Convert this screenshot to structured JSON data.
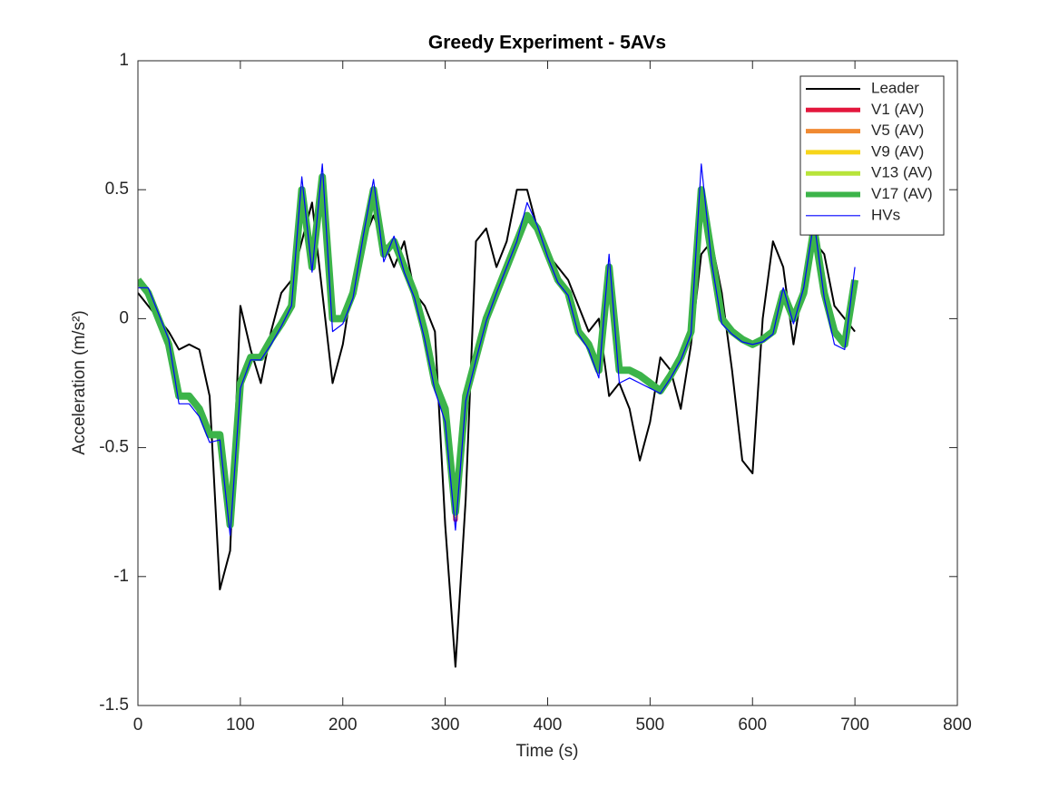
{
  "chart_data": {
    "type": "line",
    "title": "Greedy Experiment - 5AVs",
    "xlabel": "Time (s)",
    "ylabel": "Acceleration (m/s²)",
    "xlim": [
      0,
      800
    ],
    "xticks": [
      0,
      100,
      200,
      300,
      400,
      500,
      600,
      700,
      800
    ],
    "ylim": [
      -1.5,
      1
    ],
    "yticks": [
      -1.5,
      -1,
      -0.5,
      0,
      0.5,
      1
    ],
    "legend": "northeast",
    "x": [
      0,
      10,
      20,
      30,
      40,
      50,
      60,
      70,
      80,
      90,
      100,
      110,
      120,
      130,
      140,
      150,
      160,
      170,
      180,
      190,
      200,
      210,
      220,
      230,
      240,
      250,
      260,
      270,
      280,
      290,
      300,
      310,
      320,
      330,
      340,
      350,
      360,
      370,
      380,
      390,
      400,
      410,
      420,
      430,
      440,
      450,
      460,
      470,
      480,
      490,
      500,
      510,
      520,
      530,
      540,
      550,
      560,
      570,
      580,
      590,
      600,
      610,
      620,
      630,
      640,
      650,
      660,
      670,
      680,
      690,
      700
    ],
    "series": [
      {
        "name": "Leader",
        "color": "#000000",
        "width": 2,
        "values": [
          0.1,
          0.05,
          0.0,
          -0.05,
          -0.12,
          -0.1,
          -0.12,
          -0.3,
          -1.05,
          -0.9,
          0.05,
          -0.12,
          -0.25,
          -0.05,
          0.1,
          0.15,
          0.3,
          0.45,
          0.1,
          -0.25,
          -0.1,
          0.15,
          0.3,
          0.4,
          0.3,
          0.2,
          0.3,
          0.1,
          0.05,
          -0.05,
          -0.8,
          -1.35,
          -0.7,
          0.3,
          0.35,
          0.2,
          0.3,
          0.5,
          0.5,
          0.35,
          0.25,
          0.2,
          0.15,
          0.05,
          -0.05,
          0.0,
          -0.3,
          -0.25,
          -0.35,
          -0.55,
          -0.4,
          -0.15,
          -0.2,
          -0.35,
          -0.1,
          0.25,
          0.3,
          0.1,
          -0.2,
          -0.55,
          -0.6,
          0.0,
          0.3,
          0.2,
          -0.1,
          0.15,
          0.3,
          0.25,
          0.05,
          0.0,
          -0.05
        ]
      },
      {
        "name": "V1 (AV)",
        "color": "#e3173d",
        "width": 5,
        "values": [
          0.15,
          0.1,
          0.0,
          -0.1,
          -0.3,
          -0.3,
          -0.35,
          -0.45,
          -0.45,
          -0.8,
          -0.25,
          -0.15,
          -0.15,
          -0.08,
          -0.02,
          0.05,
          0.5,
          0.2,
          0.55,
          0.0,
          0.0,
          0.1,
          0.3,
          0.5,
          0.25,
          0.3,
          0.2,
          0.1,
          -0.05,
          -0.25,
          -0.35,
          -0.78,
          -0.3,
          -0.15,
          0.0,
          0.1,
          0.2,
          0.3,
          0.4,
          0.35,
          0.25,
          0.15,
          0.1,
          -0.05,
          -0.1,
          -0.2,
          0.2,
          -0.2,
          -0.2,
          -0.22,
          -0.25,
          -0.28,
          -0.22,
          -0.15,
          -0.05,
          0.5,
          0.25,
          0.0,
          -0.05,
          -0.08,
          -0.1,
          -0.08,
          -0.05,
          0.1,
          0.0,
          0.1,
          0.35,
          0.1,
          -0.05,
          -0.1,
          0.15
        ]
      },
      {
        "name": "V5 (AV)",
        "color": "#f08a32",
        "width": 5,
        "values": [
          0.15,
          0.1,
          0.0,
          -0.1,
          -0.3,
          -0.3,
          -0.35,
          -0.45,
          -0.45,
          -0.8,
          -0.25,
          -0.15,
          -0.15,
          -0.08,
          -0.02,
          0.05,
          0.5,
          0.2,
          0.55,
          0.0,
          0.0,
          0.1,
          0.3,
          0.5,
          0.25,
          0.3,
          0.2,
          0.1,
          -0.05,
          -0.25,
          -0.35,
          -0.77,
          -0.3,
          -0.15,
          0.0,
          0.1,
          0.2,
          0.3,
          0.4,
          0.35,
          0.25,
          0.15,
          0.1,
          -0.05,
          -0.1,
          -0.2,
          0.2,
          -0.2,
          -0.2,
          -0.22,
          -0.25,
          -0.28,
          -0.22,
          -0.15,
          -0.05,
          0.5,
          0.25,
          0.0,
          -0.05,
          -0.08,
          -0.1,
          -0.08,
          -0.05,
          0.1,
          0.0,
          0.1,
          0.35,
          0.1,
          -0.05,
          -0.1,
          0.15
        ]
      },
      {
        "name": "V9 (AV)",
        "color": "#f7d51a",
        "width": 5,
        "values": [
          0.15,
          0.1,
          0.0,
          -0.1,
          -0.3,
          -0.3,
          -0.35,
          -0.45,
          -0.45,
          -0.8,
          -0.25,
          -0.15,
          -0.15,
          -0.08,
          -0.02,
          0.05,
          0.5,
          0.2,
          0.55,
          0.0,
          0.0,
          0.1,
          0.3,
          0.5,
          0.25,
          0.3,
          0.2,
          0.1,
          -0.05,
          -0.25,
          -0.35,
          -0.76,
          -0.3,
          -0.15,
          0.0,
          0.1,
          0.2,
          0.3,
          0.4,
          0.35,
          0.25,
          0.15,
          0.1,
          -0.05,
          -0.1,
          -0.2,
          0.2,
          -0.2,
          -0.2,
          -0.22,
          -0.25,
          -0.28,
          -0.22,
          -0.15,
          -0.05,
          0.5,
          0.25,
          0.0,
          -0.05,
          -0.08,
          -0.1,
          -0.08,
          -0.05,
          0.1,
          0.0,
          0.1,
          0.35,
          0.1,
          -0.05,
          -0.1,
          0.15
        ]
      },
      {
        "name": "V13 (AV)",
        "color": "#b8e43a",
        "width": 5,
        "values": [
          0.15,
          0.1,
          0.0,
          -0.1,
          -0.3,
          -0.3,
          -0.35,
          -0.45,
          -0.45,
          -0.8,
          -0.25,
          -0.15,
          -0.15,
          -0.08,
          -0.02,
          0.05,
          0.5,
          0.2,
          0.55,
          0.0,
          0.0,
          0.1,
          0.3,
          0.5,
          0.25,
          0.3,
          0.2,
          0.1,
          -0.05,
          -0.25,
          -0.35,
          -0.75,
          -0.3,
          -0.15,
          0.0,
          0.1,
          0.2,
          0.3,
          0.4,
          0.35,
          0.25,
          0.15,
          0.1,
          -0.05,
          -0.1,
          -0.2,
          0.2,
          -0.2,
          -0.2,
          -0.22,
          -0.25,
          -0.28,
          -0.22,
          -0.15,
          -0.05,
          0.5,
          0.25,
          0.0,
          -0.05,
          -0.08,
          -0.1,
          -0.08,
          -0.05,
          0.1,
          0.0,
          0.1,
          0.35,
          0.1,
          -0.05,
          -0.1,
          0.15
        ]
      },
      {
        "name": "V17 (AV)",
        "color": "#3cb44a",
        "width": 8,
        "values": [
          0.15,
          0.1,
          0.0,
          -0.1,
          -0.3,
          -0.3,
          -0.35,
          -0.45,
          -0.45,
          -0.8,
          -0.25,
          -0.15,
          -0.15,
          -0.08,
          -0.02,
          0.05,
          0.5,
          0.2,
          0.55,
          0.0,
          0.0,
          0.1,
          0.3,
          0.5,
          0.25,
          0.3,
          0.2,
          0.1,
          -0.05,
          -0.25,
          -0.35,
          -0.75,
          -0.3,
          -0.15,
          0.0,
          0.1,
          0.2,
          0.3,
          0.4,
          0.35,
          0.25,
          0.15,
          0.1,
          -0.05,
          -0.1,
          -0.2,
          0.2,
          -0.2,
          -0.2,
          -0.22,
          -0.25,
          -0.28,
          -0.22,
          -0.15,
          -0.05,
          0.5,
          0.25,
          0.0,
          -0.05,
          -0.08,
          -0.1,
          -0.08,
          -0.05,
          0.1,
          0.0,
          0.1,
          0.35,
          0.1,
          -0.05,
          -0.1,
          0.15
        ]
      },
      {
        "name": "HVs",
        "color": "#0000ff",
        "width": 1.2,
        "values": [
          0.12,
          0.12,
          0.02,
          -0.08,
          -0.33,
          -0.33,
          -0.38,
          -0.48,
          -0.47,
          -0.84,
          -0.27,
          -0.16,
          -0.16,
          -0.1,
          -0.03,
          0.05,
          0.55,
          0.18,
          0.6,
          -0.05,
          -0.02,
          0.08,
          0.32,
          0.54,
          0.22,
          0.32,
          0.18,
          0.08,
          -0.08,
          -0.28,
          -0.4,
          -0.82,
          -0.32,
          -0.16,
          -0.01,
          0.1,
          0.2,
          0.3,
          0.45,
          0.36,
          0.24,
          0.14,
          0.09,
          -0.06,
          -0.12,
          -0.23,
          0.25,
          -0.25,
          -0.23,
          -0.25,
          -0.27,
          -0.29,
          -0.23,
          -0.16,
          -0.06,
          0.6,
          0.22,
          -0.02,
          -0.06,
          -0.09,
          -0.1,
          -0.09,
          -0.06,
          0.12,
          -0.02,
          0.12,
          0.38,
          0.08,
          -0.1,
          -0.12,
          0.2
        ]
      }
    ]
  }
}
